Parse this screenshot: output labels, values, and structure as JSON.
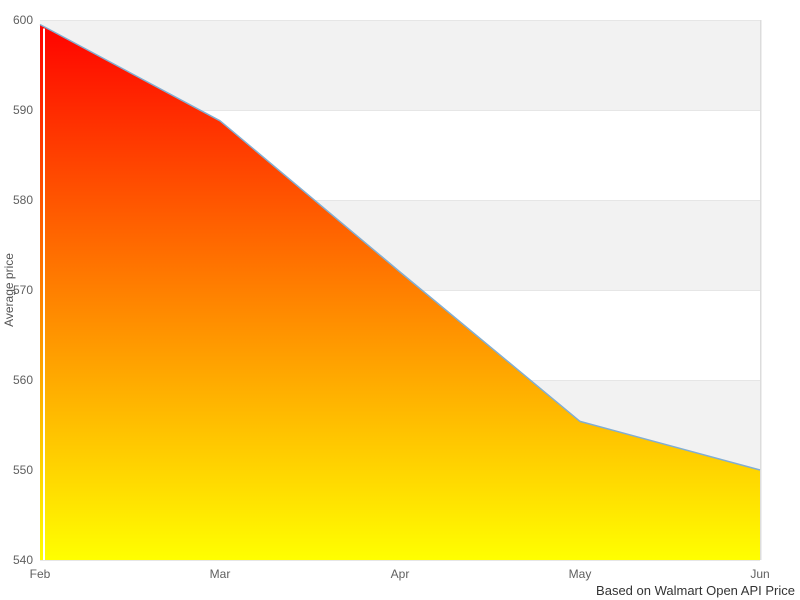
{
  "chart_data": {
    "type": "area",
    "x": [
      "Feb",
      "Mar",
      "Apr",
      "May",
      "Jun"
    ],
    "values": [
      599.5,
      588.8,
      572.0,
      555.4,
      550.0
    ],
    "title": "",
    "xlabel": "",
    "ylabel": "Average price",
    "ylim": [
      540,
      600
    ],
    "yticks": [
      540,
      550,
      560,
      570,
      580,
      590,
      600
    ],
    "caption": "Based on Walmart Open API Price",
    "legend": "none",
    "grid": "horizontal gridlines with alternating band fill between ticks",
    "gray_bands": [
      [
        590,
        600
      ],
      [
        570,
        580
      ],
      [
        550,
        560
      ]
    ]
  },
  "colors": {
    "background": "#ffffff",
    "band": "#f2f2f2",
    "gridline": "#e6e6e6",
    "plot_right_border": "#dcdcdc",
    "line": "#82aed2",
    "area_gradient_top": "#ff0000",
    "area_gradient_bottom": "#ffff00",
    "tick_label": "#606060",
    "axis_title": "#555555",
    "caption": "#333333"
  }
}
